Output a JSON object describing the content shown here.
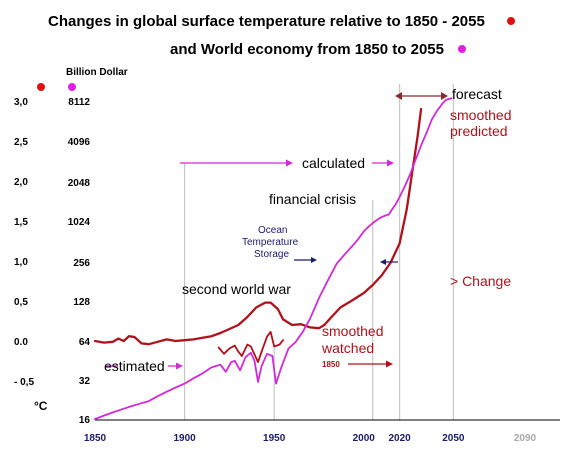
{
  "title_line1": "Changes in global surface temperature relative to 1850 - 2055",
  "title_line2": "and World economy from 1850 to 2055",
  "colors": {
    "temperature": "#b0121b",
    "economy": "#d12bd6",
    "title_dot_red": "#e01010",
    "title_dot_magenta": "#e020e0",
    "grid": "#c8c8c8",
    "arrow_navy": "#1a1a6e"
  },
  "chart_data": {
    "type": "line",
    "unit_label": "Billion Dollar",
    "y_axis_label": "°C",
    "x_ticks": [
      {
        "label": "1850",
        "value": 1850
      },
      {
        "label": "1900",
        "value": 1900
      },
      {
        "label": "1950",
        "value": 1950
      },
      {
        "label": "2000",
        "value": 2000
      },
      {
        "label": "2020",
        "value": 2020
      },
      {
        "label": "2050",
        "value": 2050
      },
      {
        "label": "2090",
        "value": 2090
      }
    ],
    "y_temp_ticks": [
      {
        "label": "3,0",
        "value": 3.0
      },
      {
        "label": "2,5",
        "value": 2.5
      },
      {
        "label": "2,0",
        "value": 2.0
      },
      {
        "label": "1,5",
        "value": 1.5
      },
      {
        "label": "1,0",
        "value": 1.0
      },
      {
        "label": "0,5",
        "value": 0.5
      },
      {
        "label": "0.0",
        "value": 0.0
      },
      {
        "label": "- 0,5",
        "value": -0.5
      }
    ],
    "y_econ_ticks": [
      {
        "label": "8112",
        "value": 8112
      },
      {
        "label": "4096",
        "value": 4096
      },
      {
        "label": "2048",
        "value": 2048
      },
      {
        "label": "1024",
        "value": 1024
      },
      {
        "label": "256",
        "value": 256
      },
      {
        "label": "128",
        "value": 128
      },
      {
        "label": "64",
        "value": 64
      },
      {
        "label": "32",
        "value": 32
      },
      {
        "label": "16",
        "value": 16
      }
    ],
    "vertical_grid_years": [
      1900,
      1950,
      2005,
      2020,
      2050
    ],
    "series": [
      {
        "key": "temperature",
        "axis": "temperature",
        "points": [
          [
            1850,
            0.0
          ],
          [
            1855,
            -0.02
          ],
          [
            1860,
            -0.01
          ],
          [
            1863,
            0.03
          ],
          [
            1866,
            0.0
          ],
          [
            1869,
            0.06
          ],
          [
            1872,
            0.05
          ],
          [
            1876,
            -0.03
          ],
          [
            1880,
            -0.04
          ],
          [
            1885,
            -0.01
          ],
          [
            1890,
            0.02
          ],
          [
            1895,
            0.0
          ],
          [
            1900,
            0.01
          ],
          [
            1905,
            0.02
          ],
          [
            1910,
            0.04
          ],
          [
            1915,
            0.06
          ],
          [
            1920,
            0.1
          ],
          [
            1925,
            0.15
          ],
          [
            1930,
            0.2
          ],
          [
            1935,
            0.3
          ],
          [
            1940,
            0.42
          ],
          [
            1945,
            0.48
          ],
          [
            1948,
            0.48
          ],
          [
            1952,
            0.4
          ],
          [
            1955,
            0.27
          ],
          [
            1960,
            0.2
          ],
          [
            1965,
            0.21
          ],
          [
            1970,
            0.17
          ],
          [
            1975,
            0.16
          ],
          [
            1978,
            0.2
          ],
          [
            1982,
            0.3
          ],
          [
            1987,
            0.42
          ],
          [
            1993,
            0.5
          ],
          [
            2000,
            0.6
          ],
          [
            2005,
            0.7
          ],
          [
            2010,
            0.82
          ],
          [
            2015,
            0.98
          ],
          [
            2020,
            1.22
          ],
          [
            2024,
            1.65
          ],
          [
            2027,
            2.1
          ],
          [
            2030,
            2.55
          ],
          [
            2032,
            2.9
          ]
        ]
      },
      {
        "key": "economy",
        "axis": "economy",
        "points": [
          [
            1850,
            16
          ],
          [
            1855,
            17
          ],
          [
            1860,
            18
          ],
          [
            1865,
            19
          ],
          [
            1870,
            20
          ],
          [
            1875,
            21
          ],
          [
            1880,
            22
          ],
          [
            1885,
            24
          ],
          [
            1890,
            26
          ],
          [
            1895,
            28
          ],
          [
            1900,
            30
          ],
          [
            1905,
            33
          ],
          [
            1910,
            36
          ],
          [
            1915,
            40
          ],
          [
            1920,
            42
          ],
          [
            1923,
            37
          ],
          [
            1926,
            44
          ],
          [
            1928,
            45
          ],
          [
            1931,
            38
          ],
          [
            1934,
            48
          ],
          [
            1937,
            52
          ],
          [
            1939,
            45
          ],
          [
            1941,
            31
          ],
          [
            1943,
            41
          ],
          [
            1946,
            51
          ],
          [
            1949,
            49
          ],
          [
            1951,
            30
          ],
          [
            1954,
            40
          ],
          [
            1958,
            56
          ],
          [
            1962,
            63
          ],
          [
            1966,
            75
          ],
          [
            1970,
            94
          ],
          [
            1975,
            135
          ],
          [
            1980,
            185
          ],
          [
            1985,
            250
          ],
          [
            1988,
            302
          ],
          [
            1991,
            370
          ],
          [
            1994,
            450
          ],
          [
            1997,
            560
          ],
          [
            2000,
            720
          ],
          [
            2003,
            860
          ],
          [
            2006,
            1000
          ],
          [
            2009,
            1080
          ],
          [
            2012,
            1130
          ],
          [
            2014,
            1150
          ],
          [
            2016,
            1270
          ],
          [
            2018,
            1390
          ],
          [
            2020,
            1570
          ],
          [
            2023,
            1910
          ],
          [
            2026,
            2350
          ],
          [
            2029,
            3000
          ],
          [
            2032,
            3800
          ],
          [
            2035,
            4700
          ],
          [
            2038,
            5900
          ],
          [
            2041,
            6900
          ],
          [
            2044,
            7800
          ],
          [
            2046,
            8300
          ],
          [
            2049,
            8500
          ]
        ]
      },
      {
        "key": "early_temperature_bumps",
        "axis": "economy",
        "points": [
          [
            1919,
            57
          ],
          [
            1922,
            51
          ],
          [
            1925,
            56
          ],
          [
            1928,
            59
          ],
          [
            1930,
            53
          ],
          [
            1932,
            49
          ],
          [
            1935,
            60
          ],
          [
            1937,
            58
          ],
          [
            1941,
            44
          ],
          [
            1943,
            53
          ],
          [
            1946,
            69
          ],
          [
            1948,
            75
          ],
          [
            1950,
            58
          ],
          [
            1953,
            60
          ],
          [
            1955,
            65
          ]
        ]
      }
    ],
    "annotations": {
      "forecast": "forecast",
      "smoothed_predicted_1": "smoothed",
      "smoothed_predicted_2": "predicted",
      "calculated": "calculated",
      "financial_crisis": "financial crisis",
      "ocean_1": "Ocean",
      "ocean_2": "Temperature",
      "ocean_3": "Storage",
      "change": "> Change",
      "second_world_war": "second world war",
      "smoothed_watched_1": "smoothed",
      "smoothed_watched_2": "watched",
      "year_1850": "1850",
      "estimated": "estimated"
    }
  }
}
